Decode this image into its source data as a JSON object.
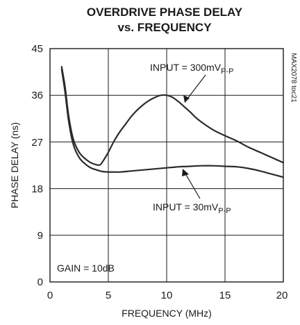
{
  "chart_data": {
    "type": "line",
    "title": "OVERDRIVE PHASE DELAY",
    "subtitle": "vs. FREQUENCY",
    "xlabel": "FREQUENCY (MHz)",
    "ylabel": "PHASE DELAY (ns)",
    "xlim": [
      0,
      20
    ],
    "ylim": [
      0,
      45
    ],
    "x_ticks": [
      "0",
      "5",
      "10",
      "15",
      "20"
    ],
    "y_ticks": [
      "0",
      "9",
      "18",
      "27",
      "36",
      "45"
    ],
    "grid": true,
    "side_label": "MAX2078 toc21",
    "annotations": {
      "gain": "GAIN = 10dB",
      "input_300": {
        "prefix": "INPUT = 300mV",
        "sub": "P-P"
      },
      "input_30": {
        "prefix": "INPUT = 30mV",
        "sub": "P-P"
      }
    },
    "series": [
      {
        "x": [
          1.0,
          1.3,
          1.6,
          2.0,
          2.5,
          3.0,
          3.5,
          4.0,
          4.3,
          4.6,
          5.0,
          5.5,
          6.0,
          6.5,
          7.0,
          7.5,
          8.0,
          8.5,
          9.0,
          9.5,
          10.0,
          10.5,
          11.0,
          11.5,
          12.0,
          12.5,
          13.0,
          14.0,
          15.0,
          16.0,
          17.0,
          18.0,
          19.0,
          20.0
        ],
        "y": [
          41.5,
          37.5,
          32.0,
          27.5,
          25.0,
          23.8,
          23.0,
          22.6,
          22.6,
          23.5,
          25.0,
          27.2,
          29.0,
          30.5,
          32.0,
          33.2,
          34.2,
          35.0,
          35.6,
          36.0,
          36.0,
          35.6,
          34.8,
          33.8,
          32.8,
          31.7,
          30.8,
          29.3,
          28.2,
          27.2,
          26.0,
          25.0,
          24.0,
          23.0
        ]
      },
      {
        "x": [
          1.0,
          1.3,
          1.6,
          2.0,
          2.5,
          3.0,
          3.5,
          4.0,
          4.5,
          5.0,
          5.5,
          6.0,
          7.0,
          8.0,
          9.0,
          10.0,
          11.0,
          12.0,
          13.0,
          14.0,
          15.0,
          16.0,
          17.0,
          18.0,
          19.0,
          20.0
        ],
        "y": [
          41.0,
          36.5,
          31.0,
          26.5,
          24.0,
          22.8,
          22.0,
          21.6,
          21.3,
          21.2,
          21.2,
          21.2,
          21.4,
          21.6,
          21.8,
          22.0,
          22.2,
          22.3,
          22.4,
          22.4,
          22.3,
          22.2,
          21.9,
          21.4,
          20.8,
          20.2
        ]
      }
    ]
  }
}
